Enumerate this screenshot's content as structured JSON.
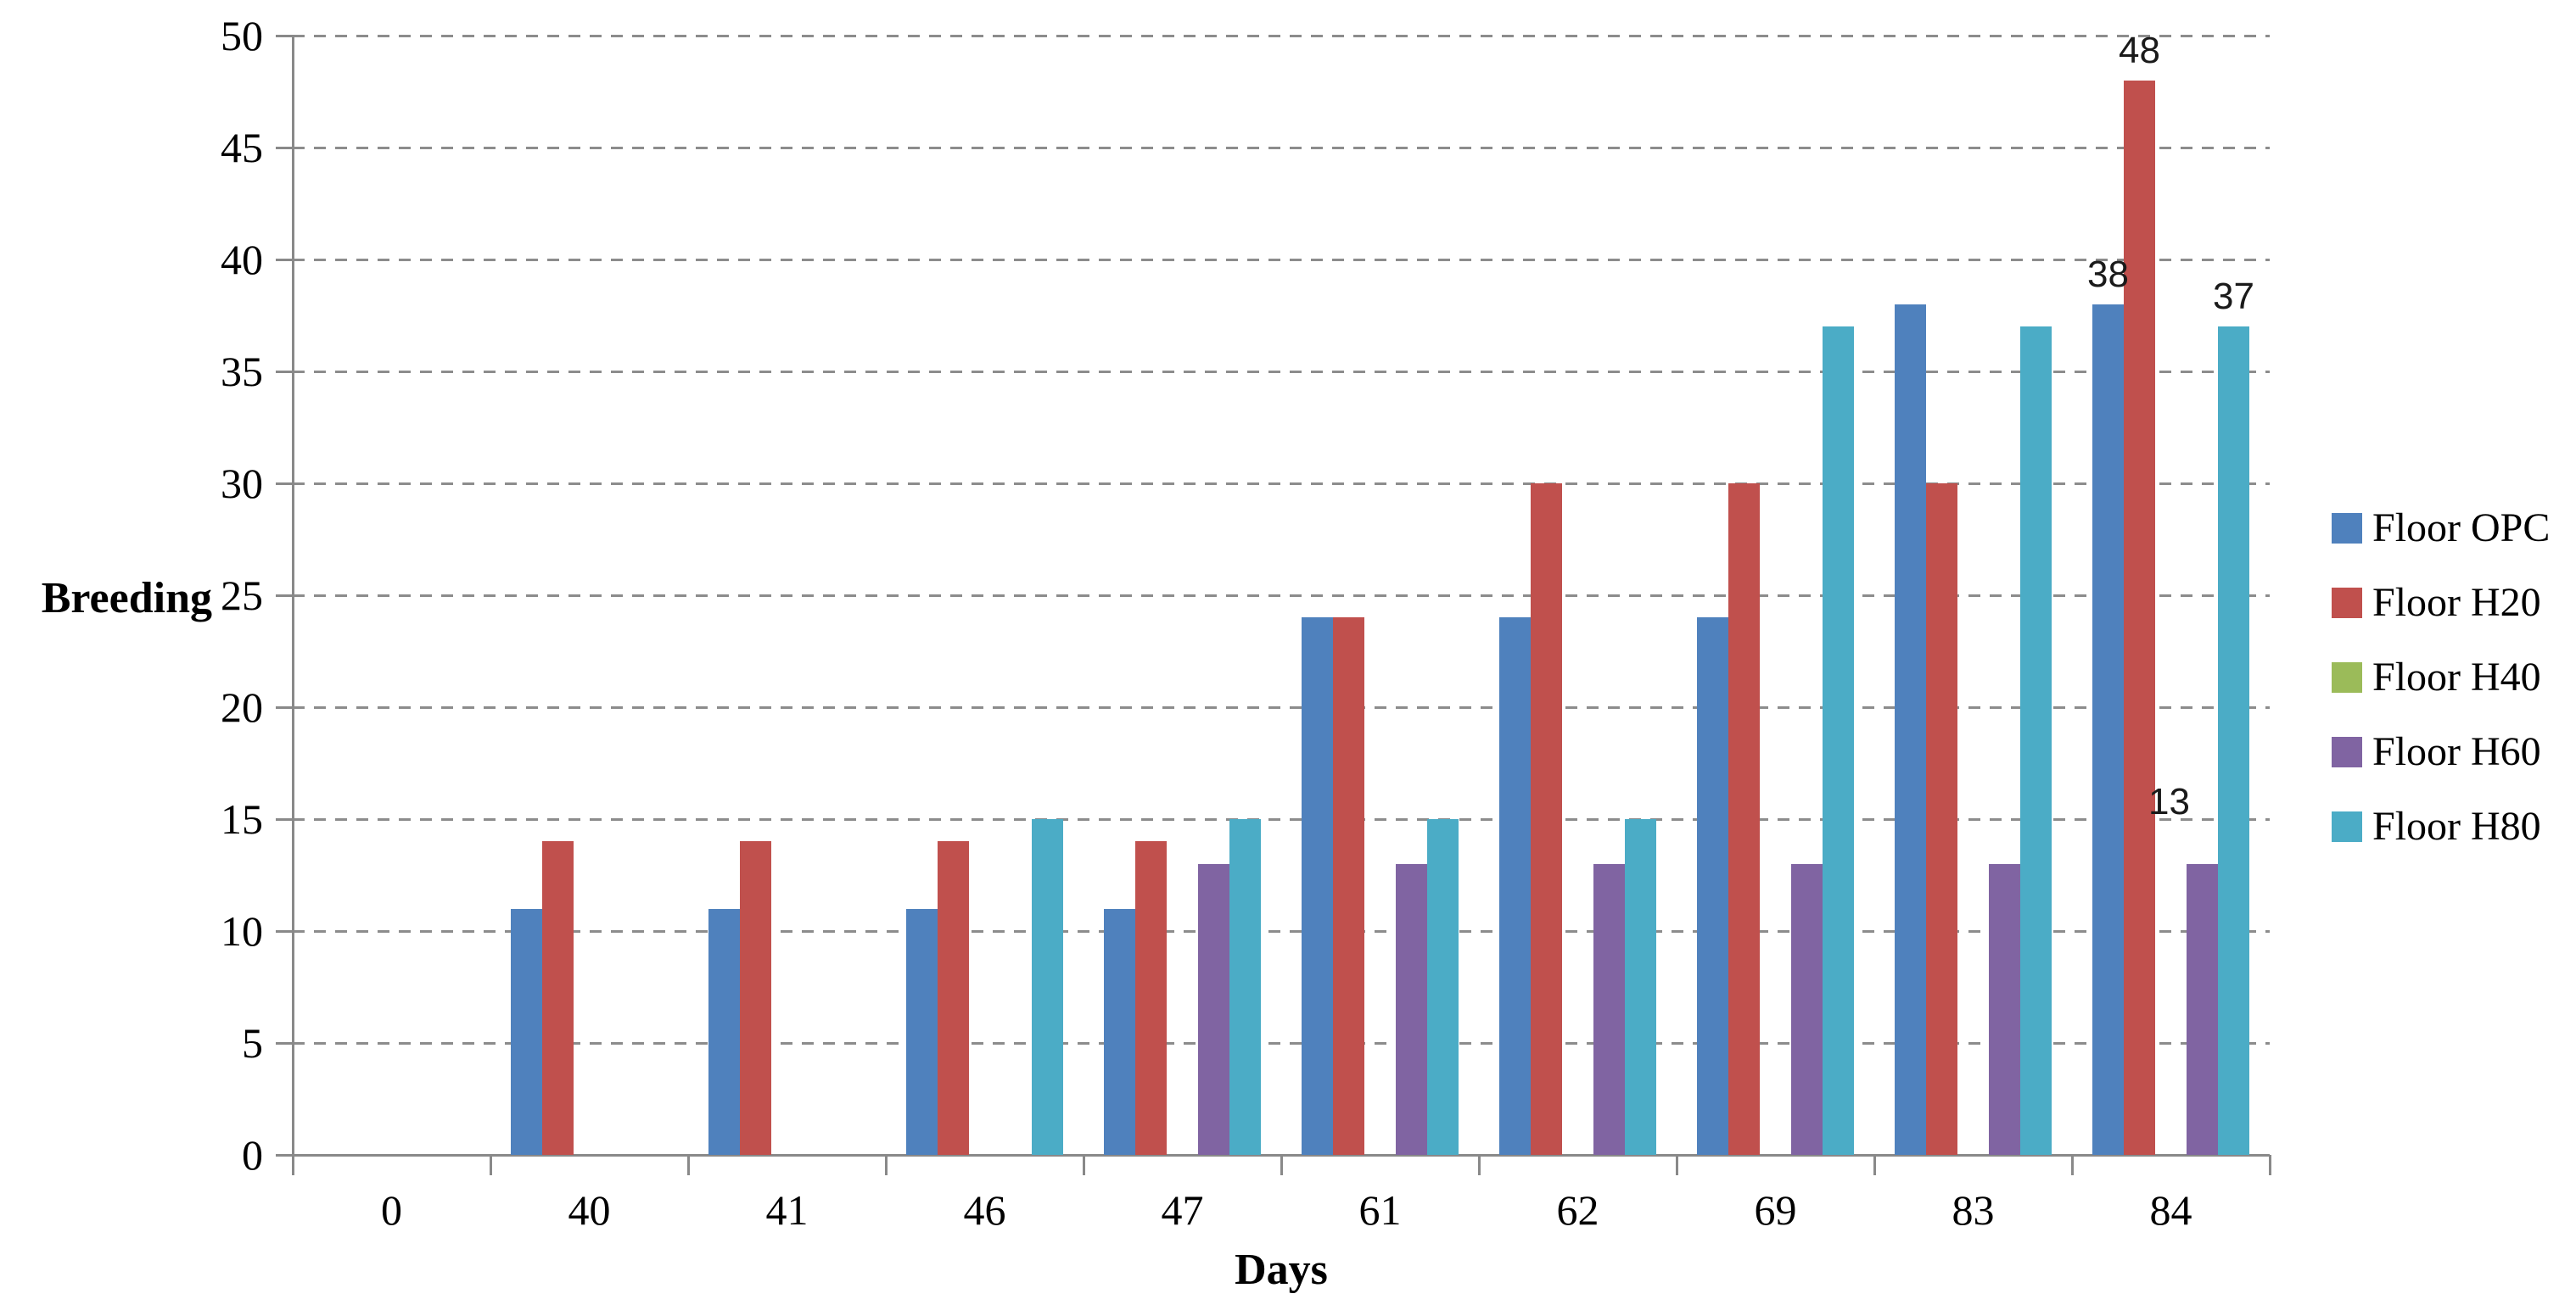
{
  "chart_data": {
    "type": "bar",
    "title": "",
    "xlabel": "Days",
    "ylabel": "Breeding",
    "categories": [
      "0",
      "40",
      "41",
      "46",
      "47",
      "61",
      "62",
      "69",
      "83",
      "84"
    ],
    "series": [
      {
        "name": "Floor OPC",
        "color": "#4F81BD",
        "values": [
          0,
          11,
          11,
          11,
          11,
          24,
          24,
          24,
          38,
          38
        ]
      },
      {
        "name": "Floor H20",
        "color": "#C0504D",
        "values": [
          0,
          14,
          14,
          14,
          14,
          24,
          30,
          30,
          30,
          48
        ]
      },
      {
        "name": "Floor H40",
        "color": "#9BBB59",
        "values": [
          0,
          0,
          0,
          0,
          0,
          0,
          0,
          0,
          0,
          0
        ]
      },
      {
        "name": "Floor H60",
        "color": "#8064A2",
        "values": [
          0,
          0,
          0,
          0,
          13,
          13,
          13,
          13,
          13,
          13
        ]
      },
      {
        "name": "Floor H80",
        "color": "#4BACC6",
        "values": [
          0,
          0,
          0,
          15,
          15,
          15,
          15,
          37,
          37,
          37
        ]
      }
    ],
    "ylim": [
      0,
      50
    ],
    "ytick_step": 5,
    "grid": "horizontal-dashed",
    "legend_position": "right",
    "data_labels": [
      {
        "category": "84",
        "series": "Floor OPC",
        "text": "38"
      },
      {
        "category": "84",
        "series": "Floor H20",
        "text": "48"
      },
      {
        "category": "84",
        "series": "Floor H60",
        "text": "13"
      },
      {
        "category": "84",
        "series": "Floor H80",
        "text": "37"
      }
    ]
  },
  "colors": {
    "axis": "#898989",
    "gridline": "#8C8C8C",
    "text": "#000000",
    "background": "#FFFFFF"
  }
}
